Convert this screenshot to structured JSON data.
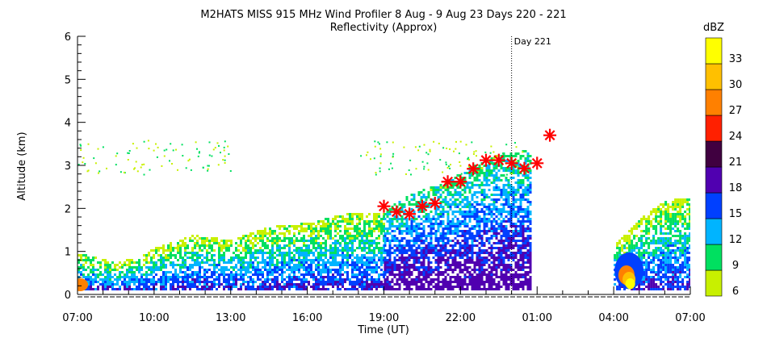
{
  "chart_data": {
    "type": "heatmap",
    "title": "M2HATS MISS 915 MHz Wind Profiler   8 Aug -  9 Aug 23 Days 220 - 221",
    "subtitle": "Reflectivity (Approx)",
    "xlabel": "Time (UT)",
    "ylabel": "Altitude (km)",
    "xticks": [
      "07:00",
      "10:00",
      "13:00",
      "16:00",
      "19:00",
      "22:00",
      "01:00",
      "04:00",
      "07:00"
    ],
    "xlim_hours": [
      0,
      24
    ],
    "yticks": [
      "0",
      "1",
      "2",
      "3",
      "4",
      "5",
      "6"
    ],
    "ylim": [
      0,
      6
    ],
    "day_marker": {
      "label": "Day 221",
      "x_hours": 17.0
    },
    "colorbar": {
      "unit": "dBZ",
      "levels": [
        "6",
        "9",
        "12",
        "15",
        "18",
        "21",
        "24",
        "27",
        "30",
        "33"
      ],
      "colors": [
        "#c8f000",
        "#00e060",
        "#00b4ff",
        "#0040ff",
        "#5000b0",
        "#400040",
        "#ff2000",
        "#ff8000",
        "#ffc000",
        "#ffff00"
      ]
    },
    "markers": {
      "symbol": "asterisk",
      "color": "#ff0000",
      "points": [
        {
          "x": 12.0,
          "y": 2.05
        },
        {
          "x": 12.5,
          "y": 1.92
        },
        {
          "x": 13.0,
          "y": 1.87
        },
        {
          "x": 13.5,
          "y": 2.05
        },
        {
          "x": 14.0,
          "y": 2.12
        },
        {
          "x": 14.5,
          "y": 2.62
        },
        {
          "x": 15.0,
          "y": 2.62
        },
        {
          "x": 15.5,
          "y": 2.92
        },
        {
          "x": 16.0,
          "y": 3.12
        },
        {
          "x": 16.5,
          "y": 3.12
        },
        {
          "x": 17.0,
          "y": 3.05
        },
        {
          "x": 17.5,
          "y": 2.93
        },
        {
          "x": 18.0,
          "y": 3.05
        },
        {
          "x": 18.5,
          "y": 3.7
        }
      ]
    },
    "echo_regions": [
      {
        "x0": 0,
        "x1": 12,
        "top_km": [
          1.0,
          0.75,
          1.1,
          1.4,
          1.3,
          1.6,
          1.7,
          1.9,
          1.95
        ],
        "base_level": 1
      },
      {
        "x0": 12,
        "x1": 17.7,
        "top_km": [
          2.0,
          2.4,
          2.6,
          3.0,
          3.3,
          3.4
        ],
        "base_level": 2
      },
      {
        "x0": 21.0,
        "x1": 24,
        "top_km": [
          1.2,
          1.8,
          2.2,
          2.3
        ],
        "base_level": 1
      }
    ]
  }
}
